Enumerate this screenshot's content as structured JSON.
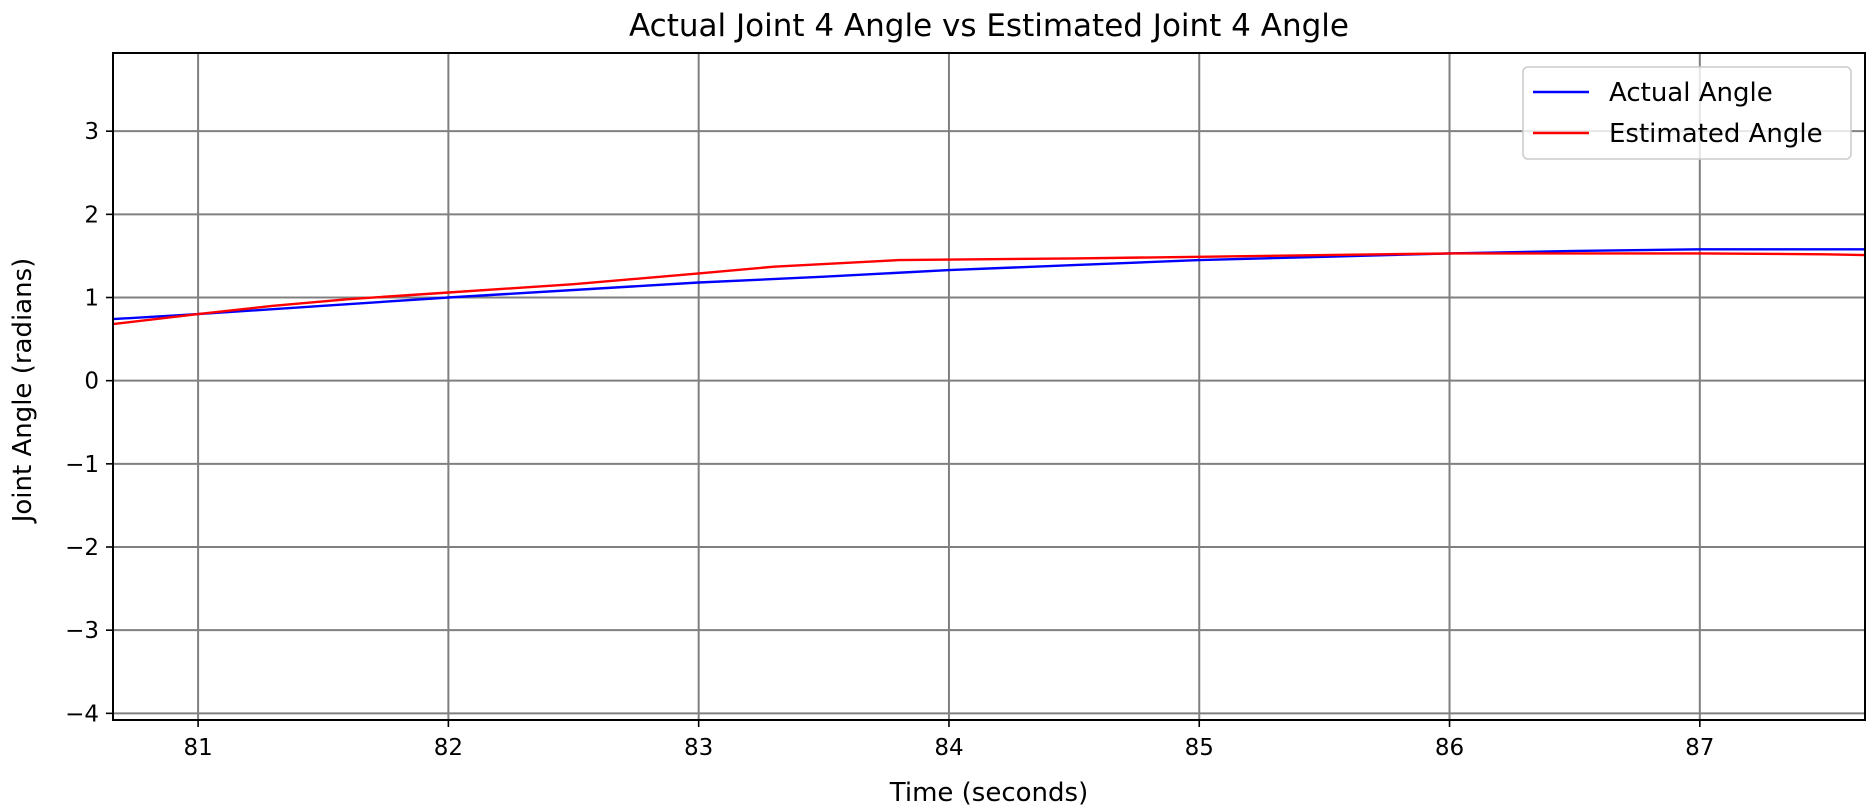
{
  "chart_data": {
    "type": "line",
    "title": "Actual Joint 4 Angle vs Estimated Joint 4 Angle",
    "xlabel": "Time (seconds)",
    "ylabel": "Joint Angle (radians)",
    "xlim": [
      80.66,
      87.66
    ],
    "ylim": [
      -4.08,
      3.94
    ],
    "xticks": [
      81,
      82,
      83,
      84,
      85,
      86,
      87
    ],
    "yticks": [
      -4,
      -3,
      -2,
      -1,
      0,
      1,
      2,
      3
    ],
    "grid": true,
    "legend_position": "top-right",
    "series": [
      {
        "name": "Actual Angle",
        "color": "#0000ff",
        "x": [
          80.66,
          81.0,
          81.5,
          82.0,
          82.5,
          83.0,
          83.5,
          84.0,
          84.5,
          85.0,
          85.5,
          86.0,
          86.5,
          87.0,
          87.5,
          87.66
        ],
        "y": [
          0.74,
          0.8,
          0.9,
          1.0,
          1.09,
          1.18,
          1.25,
          1.33,
          1.39,
          1.45,
          1.49,
          1.53,
          1.56,
          1.58,
          1.58,
          1.58
        ]
      },
      {
        "name": "Estimated Angle",
        "color": "#ff0000",
        "x": [
          80.66,
          81.0,
          81.3,
          81.6,
          82.0,
          82.5,
          83.0,
          83.3,
          83.8,
          84.5,
          85.0,
          85.5,
          86.0,
          86.5,
          87.0,
          87.5,
          87.66
        ],
        "y": [
          0.68,
          0.8,
          0.9,
          0.98,
          1.06,
          1.16,
          1.29,
          1.37,
          1.45,
          1.47,
          1.49,
          1.51,
          1.53,
          1.53,
          1.53,
          1.52,
          1.51
        ]
      }
    ]
  }
}
